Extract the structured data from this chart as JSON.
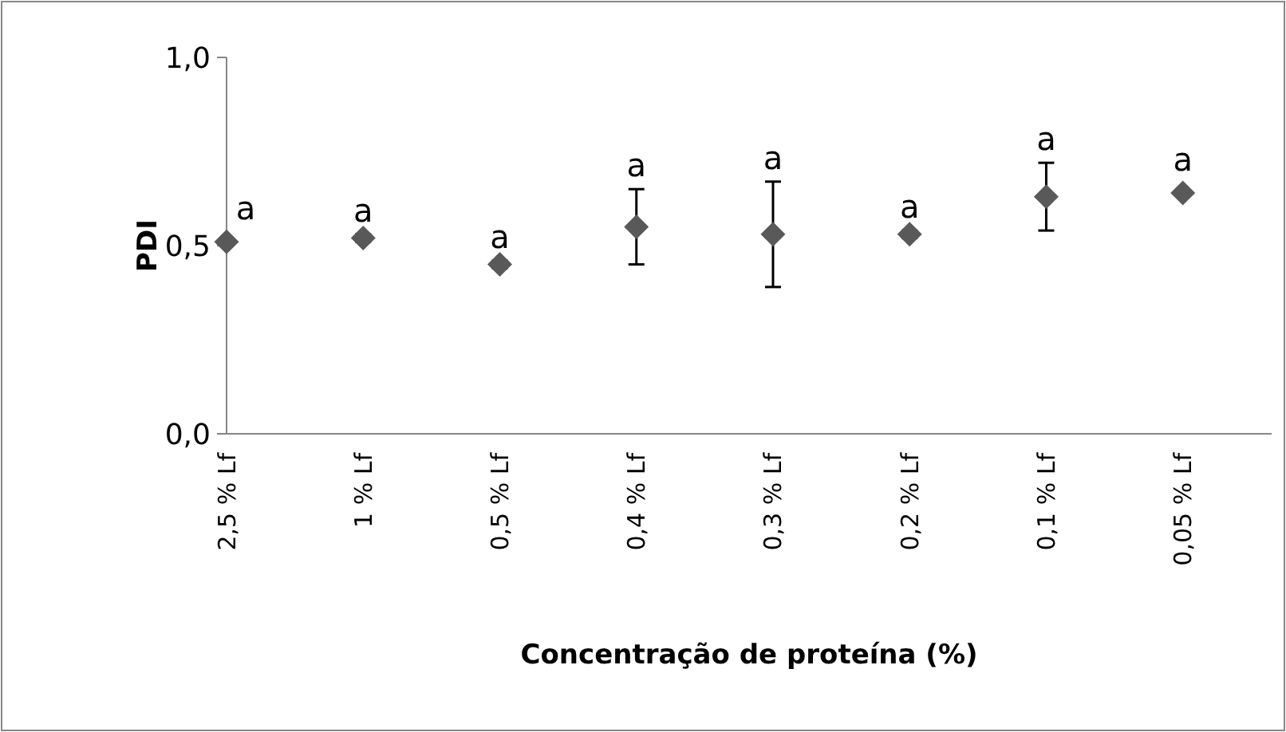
{
  "chart_data": {
    "type": "scatter",
    "xlabel": "Concentração de proteína (%)",
    "ylabel": "PDI",
    "categories": [
      "2,5 % Lf",
      "1 % Lf",
      "0,5 % Lf",
      "0,4 % Lf",
      "0,3 % Lf",
      "0,2 % Lf",
      "0,1 % Lf",
      "0,05 % Lf"
    ],
    "series": [
      {
        "color": "#595959",
        "values": [
          0.51,
          0.52,
          0.45,
          0.55,
          0.53,
          0.53,
          0.63,
          0.64
        ],
        "errors": [
          null,
          0.01,
          0.01,
          0.1,
          0.14,
          0.01,
          0.09,
          null
        ]
      }
    ],
    "ylim": [
      0,
      1
    ],
    "yticks": [
      {
        "value": 0,
        "label": "0,0"
      },
      {
        "value": 0.5,
        "label": "0,5"
      },
      {
        "value": 1,
        "label": "1,0"
      }
    ],
    "marker": "diamond",
    "grid": false,
    "annotations": [
      {
        "text": "a",
        "x": "2,5 % Lf",
        "y": 0.51
      },
      {
        "text": "a",
        "x": "1 % Lf",
        "y": 0.52
      },
      {
        "text": "a",
        "x": "0,5 % Lf",
        "y": 0.45
      },
      {
        "text": "a",
        "x": "0,4 % Lf",
        "y": 0.55
      },
      {
        "text": "a",
        "x": "0,3 % Lf",
        "y": 0.53
      },
      {
        "text": "a",
        "x": "0,2 % Lf",
        "y": 0.53
      },
      {
        "text": "a",
        "x": "0,1 % Lf",
        "y": 0.63
      },
      {
        "text": "a",
        "x": "0,05 % Lf",
        "y": 0.64
      }
    ]
  }
}
